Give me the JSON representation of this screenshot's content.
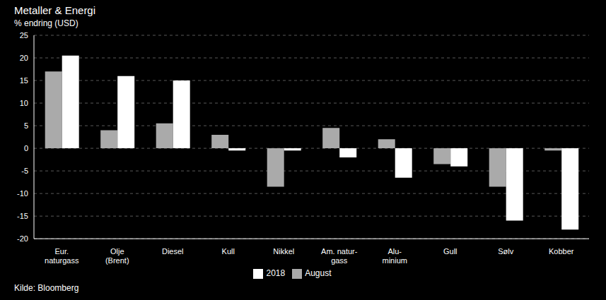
{
  "chart_data": {
    "type": "bar",
    "title": "Metaller & Energi",
    "ylabel": "% endring (USD)",
    "categories": [
      "Eur.\nnaturgass",
      "Olje\n(Brent)",
      "Diesel",
      "Kull",
      "Nikkel",
      "Am. natur-\ngass",
      "Alu-\nminium",
      "Gull",
      "Sølv",
      "Kobber"
    ],
    "series": [
      {
        "name": "August",
        "color": "#aaaaaa",
        "values": [
          17.0,
          4.0,
          5.5,
          3.0,
          -8.5,
          4.5,
          2.0,
          -3.5,
          -8.5,
          -0.5
        ]
      },
      {
        "name": "2018",
        "color": "#ffffff",
        "values": [
          20.5,
          16.0,
          15.0,
          -0.5,
          -0.5,
          -2.0,
          -6.5,
          -4.0,
          -16.0,
          -18.0
        ]
      }
    ],
    "ylim": [
      -20,
      25
    ],
    "yticks": [
      -20,
      -15,
      -10,
      -5,
      0,
      5,
      10,
      15,
      20,
      25
    ],
    "grid": true,
    "legend": "bottom",
    "annotations": [
      {
        "text": "Kilde: Bloomberg"
      }
    ]
  }
}
